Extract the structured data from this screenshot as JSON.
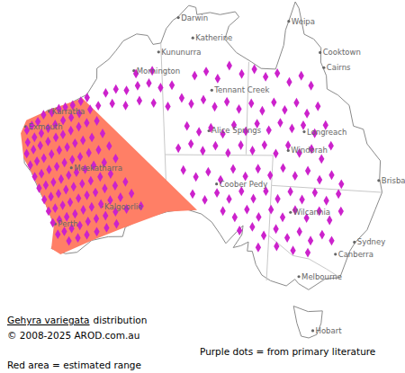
{
  "chart_data": {
    "type": "map",
    "title_parts": [
      "Gehyra variegata",
      "distribution"
    ],
    "copyright": "© 2008-2025 AROD.com.au",
    "notes": [
      "Purple dots = from primary literature",
      "Red area = estimated range"
    ],
    "places": [
      {
        "name": "Darwin",
        "lon": 130.84,
        "lat": -12.46
      },
      {
        "name": "Weipa",
        "lon": 141.87,
        "lat": -12.63
      },
      {
        "name": "Katherine",
        "lon": 132.26,
        "lat": -14.47
      },
      {
        "name": "Kununurra",
        "lon": 128.74,
        "lat": -15.77
      },
      {
        "name": "Cooktown",
        "lon": 145.25,
        "lat": -15.47
      },
      {
        "name": "Cairns",
        "lon": 145.77,
        "lat": -16.92
      },
      {
        "name": "Mornington",
        "lon": 126.1,
        "lat": -17.5
      },
      {
        "name": "Karratha",
        "lon": 116.85,
        "lat": -20.74
      },
      {
        "name": "Exmouth",
        "lon": 114.13,
        "lat": -21.93
      },
      {
        "name": "Tennant Creek",
        "lon": 134.19,
        "lat": -19.65
      },
      {
        "name": "Alice Springs",
        "lon": 133.88,
        "lat": -23.7
      },
      {
        "name": "Longreach",
        "lon": 144.25,
        "lat": -23.44
      },
      {
        "name": "Windorah",
        "lon": 142.65,
        "lat": -25.42
      },
      {
        "name": "Brisbane",
        "lon": 153.03,
        "lat": -27.47
      },
      {
        "name": "Meekatharra",
        "lon": 118.49,
        "lat": -26.6
      },
      {
        "name": "Kalgoorlie",
        "lon": 121.47,
        "lat": -30.75
      },
      {
        "name": "Perth",
        "lon": 115.86,
        "lat": -31.95
      },
      {
        "name": "Coober Pedy",
        "lon": 134.75,
        "lat": -29.01
      },
      {
        "name": "Wilcannia",
        "lon": 143.38,
        "lat": -31.56
      },
      {
        "name": "Sydney",
        "lon": 151.21,
        "lat": -33.87
      },
      {
        "name": "Canberra",
        "lon": 149.13,
        "lat": -35.28
      },
      {
        "name": "Melbourne",
        "lon": 144.96,
        "lat": -37.81
      },
      {
        "name": "Hobart",
        "lon": 147.33,
        "lat": -42.88
      }
    ],
    "range": {
      "color": "#ff7f66",
      "coordinates": [
        [
          113.5,
          -22.5
        ],
        [
          114.3,
          -21.3
        ],
        [
          116.8,
          -20.6
        ],
        [
          120.5,
          -19.8
        ],
        [
          132.5,
          -31.6
        ],
        [
          129.0,
          -31.7
        ],
        [
          124.0,
          -33.0
        ],
        [
          120.0,
          -34.0
        ],
        [
          116.0,
          -35.0
        ],
        [
          115.0,
          -34.3
        ],
        [
          115.7,
          -32.0
        ],
        [
          114.2,
          -27.0
        ],
        [
          113.4,
          -25.0
        ]
      ]
    },
    "points": {
      "color": "#cc22cc",
      "marker": "diamond",
      "coordinates": [
        [
          114.2,
          -22.3
        ],
        [
          114.8,
          -21.9
        ],
        [
          115.5,
          -21.6
        ],
        [
          116.2,
          -21.0
        ],
        [
          117.1,
          -20.9
        ],
        [
          117.9,
          -20.6
        ],
        [
          118.6,
          -20.5
        ],
        [
          119.4,
          -20.4
        ],
        [
          120.3,
          -20.1
        ],
        [
          121.0,
          -19.8
        ],
        [
          114.1,
          -23.5
        ],
        [
          114.9,
          -23.1
        ],
        [
          115.7,
          -22.8
        ],
        [
          116.5,
          -22.4
        ],
        [
          117.3,
          -22.1
        ],
        [
          118.2,
          -21.8
        ],
        [
          119.1,
          -21.6
        ],
        [
          120.0,
          -21.3
        ],
        [
          121.2,
          -21.0
        ],
        [
          122.1,
          -20.7
        ],
        [
          113.8,
          -24.6
        ],
        [
          114.6,
          -24.3
        ],
        [
          115.4,
          -24.0
        ],
        [
          116.3,
          -23.7
        ],
        [
          117.2,
          -23.4
        ],
        [
          118.0,
          -23.2
        ],
        [
          118.9,
          -22.9
        ],
        [
          119.8,
          -22.6
        ],
        [
          120.7,
          -22.3
        ],
        [
          121.8,
          -22.2
        ],
        [
          114.0,
          -25.8
        ],
        [
          114.8,
          -25.5
        ],
        [
          115.6,
          -25.3
        ],
        [
          116.5,
          -25.0
        ],
        [
          117.4,
          -24.7
        ],
        [
          118.3,
          -24.5
        ],
        [
          119.2,
          -24.2
        ],
        [
          120.1,
          -24.0
        ],
        [
          121.1,
          -23.8
        ],
        [
          122.3,
          -23.5
        ],
        [
          114.3,
          -27.0
        ],
        [
          115.1,
          -26.8
        ],
        [
          116.0,
          -26.5
        ],
        [
          116.9,
          -26.3
        ],
        [
          117.8,
          -26.0
        ],
        [
          118.7,
          -25.8
        ],
        [
          119.6,
          -25.6
        ],
        [
          120.6,
          -25.3
        ],
        [
          121.7,
          -25.1
        ],
        [
          122.9,
          -24.8
        ],
        [
          114.6,
          -28.2
        ],
        [
          115.4,
          -28.0
        ],
        [
          116.3,
          -27.8
        ],
        [
          117.2,
          -27.6
        ],
        [
          118.1,
          -27.3
        ],
        [
          119.0,
          -27.1
        ],
        [
          120.0,
          -26.9
        ],
        [
          121.0,
          -26.6
        ],
        [
          122.2,
          -26.4
        ],
        [
          123.5,
          -26.1
        ],
        [
          115.0,
          -29.4
        ],
        [
          115.8,
          -29.2
        ],
        [
          116.7,
          -29.0
        ],
        [
          117.6,
          -28.7
        ],
        [
          118.5,
          -28.5
        ],
        [
          119.5,
          -28.3
        ],
        [
          120.5,
          -28.1
        ],
        [
          121.6,
          -27.8
        ],
        [
          122.8,
          -27.6
        ],
        [
          115.3,
          -30.6
        ],
        [
          116.1,
          -30.4
        ],
        [
          117.0,
          -30.2
        ],
        [
          117.9,
          -30.0
        ],
        [
          118.9,
          -29.7
        ],
        [
          119.9,
          -29.5
        ],
        [
          120.9,
          -29.3
        ],
        [
          122.0,
          -29.0
        ],
        [
          123.2,
          -28.8
        ],
        [
          124.4,
          -28.5
        ],
        [
          115.6,
          -31.8
        ],
        [
          116.4,
          -31.6
        ],
        [
          117.3,
          -31.4
        ],
        [
          118.3,
          -31.2
        ],
        [
          119.3,
          -30.9
        ],
        [
          120.3,
          -30.7
        ],
        [
          121.4,
          -30.5
        ],
        [
          122.5,
          -30.2
        ],
        [
          123.7,
          -30.0
        ],
        [
          125.0,
          -29.7
        ],
        [
          116.0,
          -33.0
        ],
        [
          116.8,
          -32.8
        ],
        [
          117.7,
          -32.6
        ],
        [
          118.7,
          -32.4
        ],
        [
          119.7,
          -32.1
        ],
        [
          120.7,
          -31.9
        ],
        [
          121.8,
          -31.7
        ],
        [
          123.0,
          -31.4
        ],
        [
          124.3,
          -31.2
        ],
        [
          126.0,
          -31.0
        ],
        [
          117.2,
          -33.8
        ],
        [
          118.3,
          -33.6
        ],
        [
          119.4,
          -33.4
        ],
        [
          120.6,
          -33.2
        ],
        [
          121.8,
          -32.9
        ],
        [
          123.0,
          -32.6
        ],
        [
          123.0,
          -19.5
        ],
        [
          124.1,
          -19.2
        ],
        [
          125.2,
          -19.4
        ],
        [
          126.4,
          -19.0
        ],
        [
          127.6,
          -18.8
        ],
        [
          128.8,
          -19.3
        ],
        [
          130.0,
          -19.1
        ],
        [
          123.6,
          -20.6
        ],
        [
          125.0,
          -20.9
        ],
        [
          126.5,
          -20.5
        ],
        [
          128.0,
          -20.8
        ],
        [
          129.5,
          -21.2
        ],
        [
          131.0,
          -20.4
        ],
        [
          126.3,
          -17.8
        ],
        [
          128.0,
          -17.6
        ],
        [
          132.4,
          -18.2
        ],
        [
          133.6,
          -17.8
        ],
        [
          134.8,
          -18.5
        ],
        [
          136.0,
          -17.2
        ],
        [
          137.3,
          -18.0
        ],
        [
          138.6,
          -17.5
        ],
        [
          139.8,
          -18.2
        ],
        [
          141.0,
          -17.8
        ],
        [
          142.3,
          -18.6
        ],
        [
          143.5,
          -17.9
        ],
        [
          144.6,
          -18.8
        ],
        [
          132.0,
          -21.0
        ],
        [
          133.3,
          -20.6
        ],
        [
          134.5,
          -21.3
        ],
        [
          135.8,
          -20.8
        ],
        [
          137.1,
          -21.5
        ],
        [
          138.4,
          -20.9
        ],
        [
          139.6,
          -21.6
        ],
        [
          140.8,
          -20.7
        ],
        [
          142.0,
          -21.4
        ],
        [
          143.2,
          -20.6
        ],
        [
          144.4,
          -21.6
        ],
        [
          145.5,
          -20.8
        ],
        [
          131.5,
          -23.2
        ],
        [
          132.8,
          -23.8
        ],
        [
          134.1,
          -23.4
        ],
        [
          135.4,
          -24.0
        ],
        [
          136.6,
          -23.1
        ],
        [
          137.9,
          -23.7
        ],
        [
          139.1,
          -22.9
        ],
        [
          140.4,
          -23.5
        ],
        [
          141.6,
          -22.7
        ],
        [
          142.9,
          -23.2
        ],
        [
          144.1,
          -22.8
        ],
        [
          145.4,
          -23.5
        ],
        [
          146.5,
          -22.6
        ],
        [
          130.5,
          -25.4
        ],
        [
          131.9,
          -25.0
        ],
        [
          133.2,
          -25.7
        ],
        [
          134.6,
          -25.2
        ],
        [
          136.0,
          -25.9
        ],
        [
          137.4,
          -25.1
        ],
        [
          138.7,
          -25.6
        ],
        [
          140.0,
          -25.0
        ],
        [
          141.3,
          -25.8
        ],
        [
          142.6,
          -24.9
        ],
        [
          143.9,
          -25.6
        ],
        [
          145.2,
          -25.1
        ],
        [
          146.4,
          -26.0
        ],
        [
          147.3,
          -24.6
        ],
        [
          131.0,
          -27.6
        ],
        [
          132.4,
          -28.3
        ],
        [
          133.8,
          -27.8
        ],
        [
          135.2,
          -28.6
        ],
        [
          136.6,
          -27.5
        ],
        [
          138.0,
          -28.2
        ],
        [
          139.4,
          -27.4
        ],
        [
          140.8,
          -28.0
        ],
        [
          142.2,
          -27.2
        ],
        [
          143.6,
          -27.9
        ],
        [
          145.0,
          -27.3
        ],
        [
          146.4,
          -28.1
        ],
        [
          147.7,
          -27.5
        ],
        [
          148.9,
          -28.3
        ],
        [
          132.0,
          -30.0
        ],
        [
          133.4,
          -30.6
        ],
        [
          134.8,
          -29.9
        ],
        [
          136.2,
          -30.5
        ],
        [
          137.6,
          -29.7
        ],
        [
          139.0,
          -30.4
        ],
        [
          140.4,
          -29.6
        ],
        [
          141.8,
          -30.3
        ],
        [
          143.2,
          -29.5
        ],
        [
          144.6,
          -30.2
        ],
        [
          146.0,
          -29.4
        ],
        [
          147.4,
          -30.1
        ],
        [
          148.7,
          -29.3
        ],
        [
          135.5,
          -31.7
        ],
        [
          136.9,
          -32.3
        ],
        [
          138.3,
          -31.5
        ],
        [
          139.7,
          -32.2
        ],
        [
          141.1,
          -31.4
        ],
        [
          142.5,
          -32.1
        ],
        [
          143.9,
          -31.3
        ],
        [
          145.3,
          -32.0
        ],
        [
          146.7,
          -31.2
        ],
        [
          148.0,
          -32.0
        ],
        [
          149.2,
          -31.0
        ],
        [
          137.5,
          -33.6
        ],
        [
          139.0,
          -33.2
        ],
        [
          140.4,
          -34.0
        ],
        [
          141.8,
          -33.3
        ],
        [
          143.2,
          -34.1
        ],
        [
          144.6,
          -33.4
        ],
        [
          146.0,
          -34.2
        ],
        [
          147.3,
          -33.5
        ],
        [
          148.5,
          -34.0
        ],
        [
          142.0,
          -35.0
        ],
        [
          144.0,
          -35.3
        ],
        [
          145.8,
          -35.4
        ],
        [
          139.8,
          -35.2
        ]
      ]
    }
  }
}
